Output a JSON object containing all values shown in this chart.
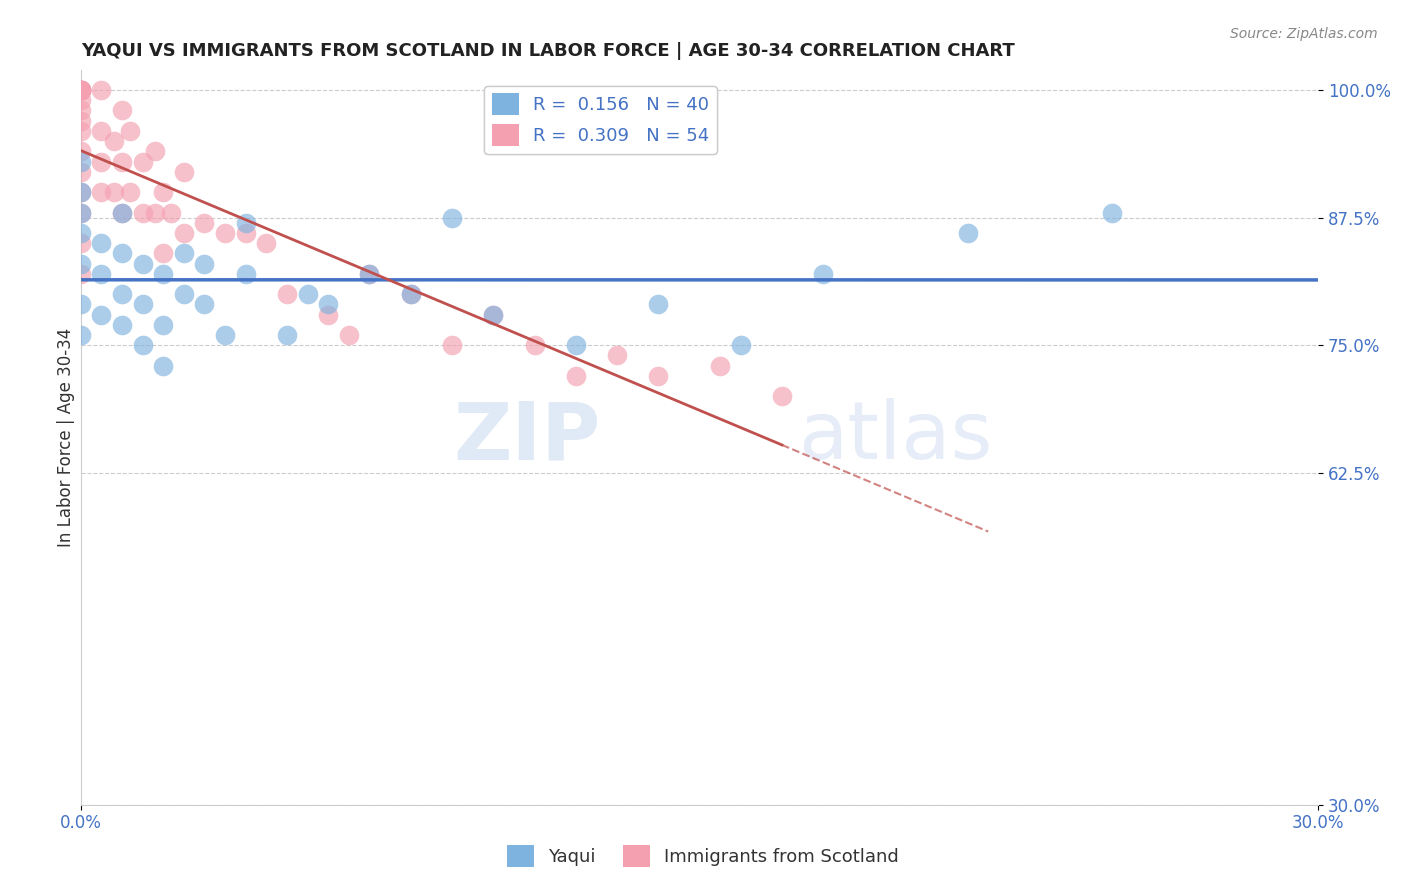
{
  "title": "YAQUI VS IMMIGRANTS FROM SCOTLAND IN LABOR FORCE | AGE 30-34 CORRELATION CHART",
  "source_text": "Source: ZipAtlas.com",
  "xlabel": "",
  "ylabel": "In Labor Force | Age 30-34",
  "xlim": [
    0.0,
    0.3
  ],
  "ylim": [
    0.3,
    1.02
  ],
  "ytick_labels": [
    "100.0%",
    "87.5%",
    "75.0%",
    "62.5%",
    "30.0%"
  ],
  "ytick_values": [
    1.0,
    0.875,
    0.75,
    0.625,
    0.3
  ],
  "xtick_labels": [
    "0.0%",
    "30.0%"
  ],
  "xtick_values": [
    0.0,
    0.3
  ],
  "yaqui_color": "#7eb3e0",
  "scotland_color": "#f4a0b0",
  "yaqui_R": 0.156,
  "yaqui_N": 40,
  "scotland_R": 0.309,
  "scotland_N": 54,
  "legend_label_yaqui": "Yaqui",
  "legend_label_scotland": "Immigrants from Scotland",
  "watermark_zip": "ZIP",
  "watermark_atlas": "atlas",
  "blue_line_color": "#4472c4",
  "pink_line_color": "#c0504d",
  "grid_color": "#cccccc",
  "yaqui_x": [
    0.0,
    0.0,
    0.0,
    0.0,
    0.0,
    0.0,
    0.0,
    0.005,
    0.005,
    0.005,
    0.01,
    0.01,
    0.01,
    0.01,
    0.015,
    0.015,
    0.015,
    0.02,
    0.02,
    0.02,
    0.025,
    0.025,
    0.03,
    0.03,
    0.035,
    0.04,
    0.04,
    0.05,
    0.055,
    0.06,
    0.07,
    0.08,
    0.09,
    0.1,
    0.12,
    0.14,
    0.16,
    0.18,
    0.215,
    0.25
  ],
  "yaqui_y": [
    0.83,
    0.86,
    0.88,
    0.9,
    0.93,
    0.79,
    0.76,
    0.82,
    0.78,
    0.85,
    0.84,
    0.8,
    0.77,
    0.88,
    0.79,
    0.83,
    0.75,
    0.77,
    0.82,
    0.73,
    0.8,
    0.84,
    0.79,
    0.83,
    0.76,
    0.82,
    0.87,
    0.76,
    0.8,
    0.79,
    0.82,
    0.8,
    0.875,
    0.78,
    0.75,
    0.79,
    0.75,
    0.82,
    0.86,
    0.88
  ],
  "scotland_x": [
    0.0,
    0.0,
    0.0,
    0.0,
    0.0,
    0.0,
    0.0,
    0.0,
    0.0,
    0.0,
    0.0,
    0.0,
    0.0,
    0.0,
    0.0,
    0.0,
    0.0,
    0.005,
    0.005,
    0.005,
    0.005,
    0.008,
    0.008,
    0.01,
    0.01,
    0.01,
    0.012,
    0.012,
    0.015,
    0.015,
    0.018,
    0.018,
    0.02,
    0.02,
    0.022,
    0.025,
    0.025,
    0.03,
    0.035,
    0.04,
    0.045,
    0.05,
    0.06,
    0.065,
    0.07,
    0.08,
    0.09,
    0.1,
    0.11,
    0.12,
    0.13,
    0.14,
    0.155,
    0.17
  ],
  "scotland_y": [
    0.82,
    0.85,
    0.88,
    0.9,
    0.92,
    0.94,
    0.96,
    0.97,
    0.98,
    0.99,
    1.0,
    1.0,
    1.0,
    1.0,
    1.0,
    1.0,
    1.0,
    0.9,
    0.93,
    0.96,
    1.0,
    0.9,
    0.95,
    0.88,
    0.93,
    0.98,
    0.9,
    0.96,
    0.88,
    0.93,
    0.88,
    0.94,
    0.84,
    0.9,
    0.88,
    0.86,
    0.92,
    0.87,
    0.86,
    0.86,
    0.85,
    0.8,
    0.78,
    0.76,
    0.82,
    0.8,
    0.75,
    0.78,
    0.75,
    0.72,
    0.74,
    0.72,
    0.73,
    0.7
  ]
}
